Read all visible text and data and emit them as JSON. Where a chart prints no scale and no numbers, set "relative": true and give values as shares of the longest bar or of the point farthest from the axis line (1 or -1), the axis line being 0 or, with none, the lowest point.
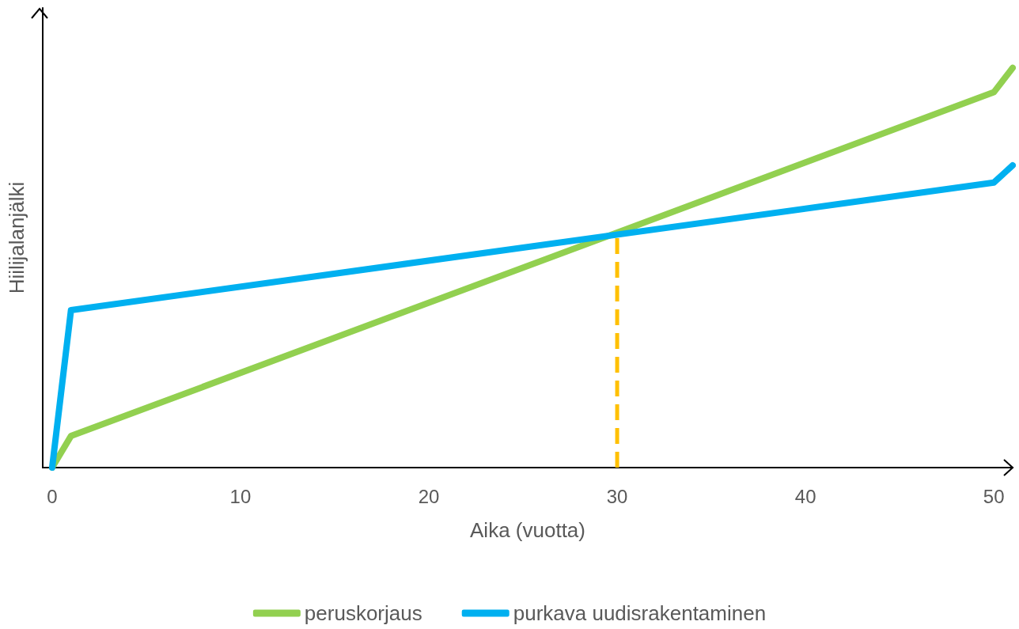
{
  "chart_data": {
    "type": "line",
    "relative": true,
    "xlabel": "Aika (vuotta)",
    "ylabel": "Hiilijalanjälki",
    "xlim": [
      -0.5,
      51
    ],
    "xticks": [
      0,
      10,
      20,
      30,
      40,
      50
    ],
    "grid": false,
    "legend": "bottom",
    "marker": "none",
    "series": [
      {
        "name": "peruskorjaus",
        "color": "#92d050",
        "x": [
          0,
          1,
          50,
          51
        ],
        "values": [
          0,
          0.079,
          0.939,
          1
        ]
      },
      {
        "name": "purkava uudisrakentaminen",
        "color": "#00b0f0",
        "x": [
          0,
          1,
          50,
          51
        ],
        "values": [
          0,
          0.394,
          0.713,
          0.756
        ]
      },
      {
        "type": "line",
        "color": "#ffc000",
        "line_style": "dashed",
        "x": [
          30,
          30
        ],
        "values": [
          0,
          0.583
        ]
      }
    ]
  }
}
